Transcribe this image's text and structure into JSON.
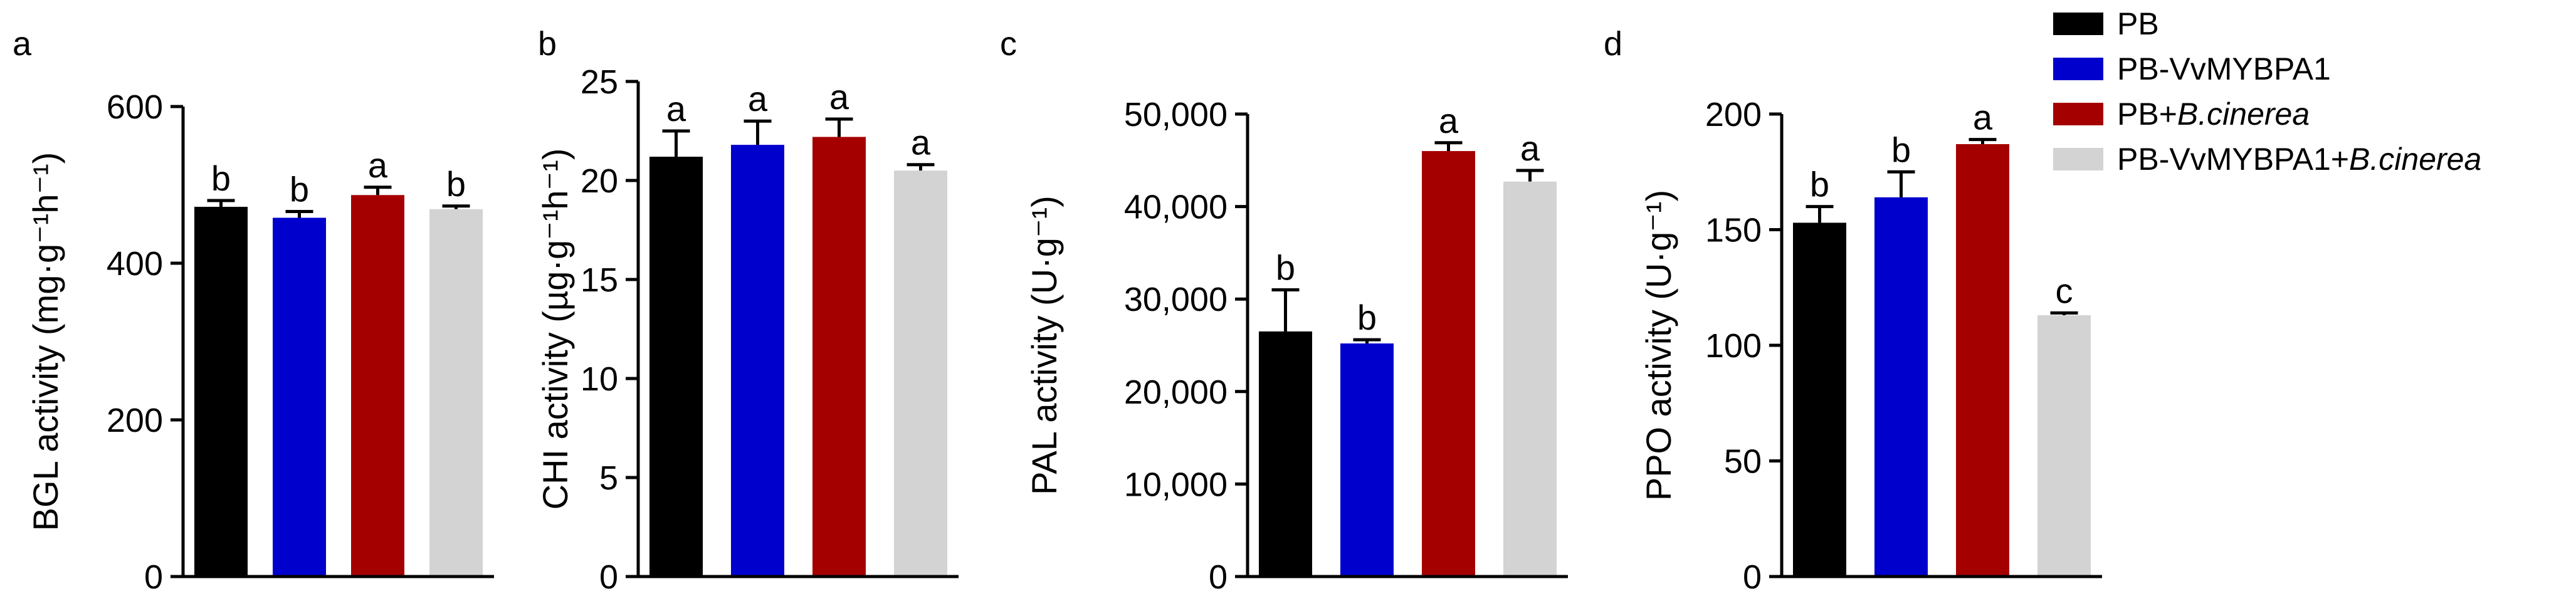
{
  "colors": {
    "PB": "#000000",
    "PB-VvMYBPA1": "#0000CC",
    "PB+B.cinerea": "#A50000",
    "PB-VvMYBPA1+B.cinerea": "#D3D3D3"
  },
  "legend": {
    "position": "top-right",
    "items": [
      {
        "key": "PB",
        "prefix": "PB",
        "italic": ""
      },
      {
        "key": "PB-VvMYBPA1",
        "prefix": "PB-VvMYBPA1",
        "italic": ""
      },
      {
        "key": "PB+B.cinerea",
        "prefix": "PB+",
        "italic": "B.cinerea"
      },
      {
        "key": "PB-VvMYBPA1+B.cinerea",
        "prefix": "PB-VvMYBPA1+",
        "italic": "B.cinerea"
      }
    ]
  },
  "chart_data": [
    {
      "type": "bar",
      "panel": "a",
      "ylabel": "BGL activity (mg·g⁻¹h⁻¹)",
      "ylim": [
        0,
        600
      ],
      "yticks": [
        0,
        200,
        400,
        600
      ],
      "ytick_labels": [
        "0",
        "200",
        "400",
        "600"
      ],
      "categories": [
        "PB",
        "PB-VvMYBPA1",
        "PB+B.cinerea",
        "PB-VvMYBPA1+B.cinerea"
      ],
      "values": [
        472,
        458,
        487,
        469
      ],
      "errors": [
        8,
        8,
        10,
        4
      ],
      "significance": [
        "b",
        "b",
        "a",
        "b"
      ]
    },
    {
      "type": "bar",
      "panel": "b",
      "ylabel": "CHI activity (µg·g⁻¹h⁻¹)",
      "ylim": [
        0,
        25
      ],
      "yticks": [
        0,
        5,
        10,
        15,
        20,
        25
      ],
      "ytick_labels": [
        "0",
        "5",
        "10",
        "15",
        "20",
        "25"
      ],
      "categories": [
        "PB",
        "PB-VvMYBPA1",
        "PB+B.cinerea",
        "PB-VvMYBPA1+B.cinerea"
      ],
      "values": [
        21.2,
        21.8,
        22.2,
        20.5
      ],
      "errors": [
        1.3,
        1.2,
        0.9,
        0.3
      ],
      "significance": [
        "a",
        "a",
        "a",
        "a"
      ]
    },
    {
      "type": "bar",
      "panel": "c",
      "ylabel": "PAL activity (U·g⁻¹)",
      "ylim": [
        0,
        50000
      ],
      "yticks": [
        0,
        10000,
        20000,
        30000,
        40000,
        50000
      ],
      "ytick_labels": [
        "0",
        "10,000",
        "20,000",
        "30,000",
        "40,000",
        "50,000"
      ],
      "categories": [
        "PB",
        "PB-VvMYBPA1",
        "PB+B.cinerea",
        "PB-VvMYBPA1+B.cinerea"
      ],
      "values": [
        26500,
        25200,
        46000,
        42700
      ],
      "errors": [
        4500,
        400,
        900,
        1200
      ],
      "significance": [
        "b",
        "b",
        "a",
        "a"
      ]
    },
    {
      "type": "bar",
      "panel": "d",
      "ylabel": "PPO activity (U·g⁻¹)",
      "ylim": [
        0,
        200
      ],
      "yticks": [
        0,
        50,
        100,
        150,
        200
      ],
      "ytick_labels": [
        "0",
        "50",
        "100",
        "150",
        "200"
      ],
      "categories": [
        "PB",
        "PB-VvMYBPA1",
        "PB+B.cinerea",
        "PB-VvMYBPA1+B.cinerea"
      ],
      "values": [
        153,
        164,
        187,
        113
      ],
      "errors": [
        7,
        11,
        2,
        1
      ],
      "significance": [
        "b",
        "b",
        "a",
        "c"
      ]
    }
  ]
}
